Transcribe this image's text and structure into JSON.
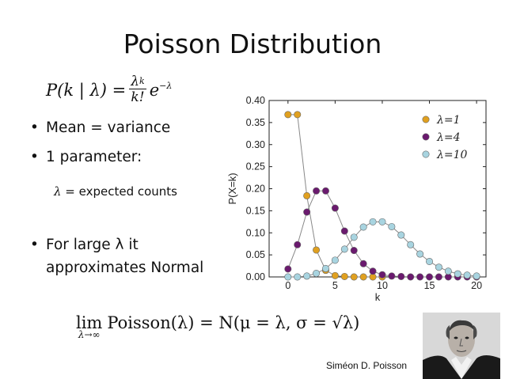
{
  "title": "Poisson Distribution",
  "formula_top": {
    "lhs": "P(k | λ) =",
    "num": "λ",
    "num_exp": "k",
    "den": "k!",
    "tail": "e",
    "tail_exp": "−λ"
  },
  "bullets": [
    {
      "bullet": "•",
      "text": "Mean = variance"
    },
    {
      "bullet": "•",
      "text": "1 parameter:"
    },
    {
      "bullet": "•",
      "text": "For large λ it"
    },
    {
      "bullet": "",
      "text": "approximates Normal"
    }
  ],
  "sub_bullet": {
    "symbol": "λ",
    "text": " = expected counts"
  },
  "formula_bottom": {
    "lim": "lim",
    "lim_sub": "λ→∞",
    "body": "Poisson(λ) = N(μ = λ, σ = √λ)"
  },
  "caption": "Siméon D. Poisson",
  "colors": {
    "lambda1": "#e0a020",
    "lambda4": "#6a1a6e",
    "lambda10": "#a8d4e0",
    "line": "#888888"
  },
  "chart_data": {
    "type": "line",
    "xlabel": "k",
    "ylabel": "P(X=k)",
    "xlim": [
      -2,
      21
    ],
    "ylim": [
      0,
      0.4
    ],
    "xticks": [
      0,
      5,
      10,
      15,
      20
    ],
    "yticks": [
      "0.00",
      "0.05",
      "0.10",
      "0.15",
      "0.20",
      "0.25",
      "0.30",
      "0.35",
      "0.40"
    ],
    "legend_position": "top-right",
    "series": [
      {
        "name": "λ=1",
        "color": "#e0a020",
        "x": [
          0,
          1,
          2,
          3,
          4,
          5,
          6,
          7,
          8,
          9,
          10
        ],
        "y": [
          0.368,
          0.368,
          0.184,
          0.061,
          0.015,
          0.003,
          0.001,
          0,
          0,
          0,
          0
        ]
      },
      {
        "name": "λ=4",
        "color": "#6a1a6e",
        "x": [
          0,
          1,
          2,
          3,
          4,
          5,
          6,
          7,
          8,
          9,
          10,
          11,
          12,
          13,
          14,
          15,
          16,
          17,
          18,
          19,
          20
        ],
        "y": [
          0.018,
          0.073,
          0.147,
          0.195,
          0.195,
          0.156,
          0.104,
          0.06,
          0.03,
          0.013,
          0.005,
          0.002,
          0.001,
          0,
          0,
          0,
          0,
          0,
          0,
          0,
          0
        ]
      },
      {
        "name": "λ=10",
        "color": "#a8d4e0",
        "x": [
          0,
          1,
          2,
          3,
          4,
          5,
          6,
          7,
          8,
          9,
          10,
          11,
          12,
          13,
          14,
          15,
          16,
          17,
          18,
          19,
          20
        ],
        "y": [
          0,
          0,
          0.002,
          0.008,
          0.019,
          0.038,
          0.063,
          0.09,
          0.113,
          0.125,
          0.125,
          0.114,
          0.095,
          0.073,
          0.052,
          0.035,
          0.022,
          0.013,
          0.007,
          0.004,
          0.002
        ]
      }
    ]
  }
}
